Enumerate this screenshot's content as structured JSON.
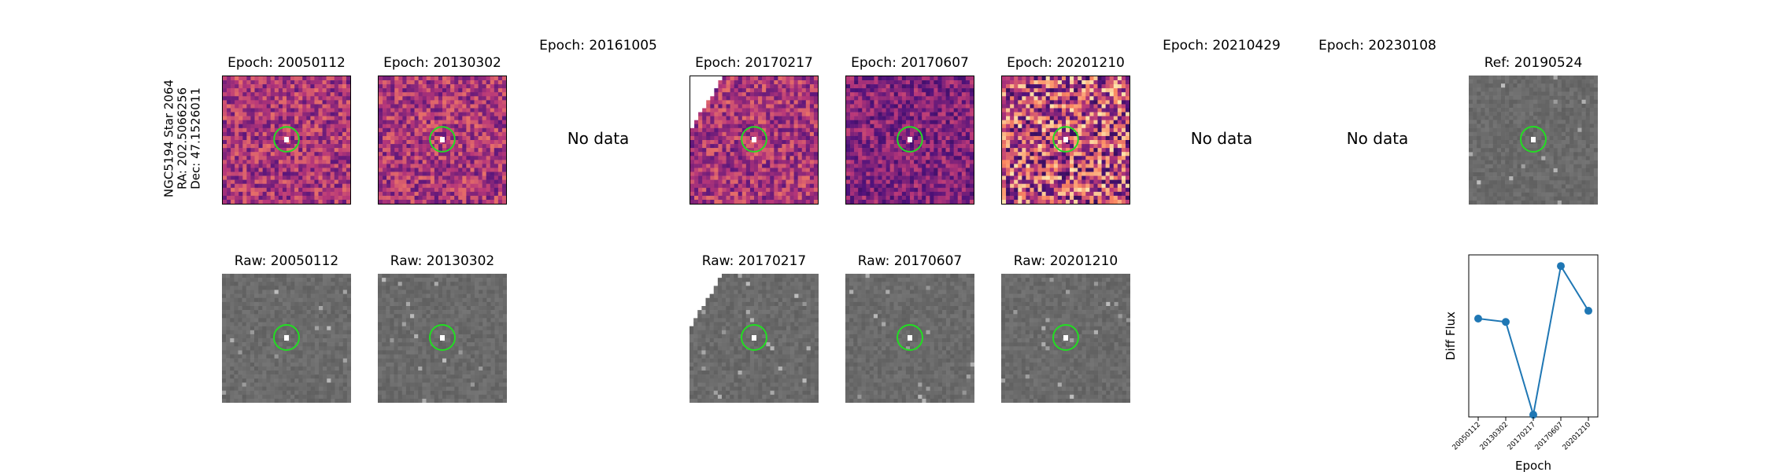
{
  "star": {
    "name": "NGC5194 Star 2064",
    "ra": "RA: 202.5066256",
    "dec": "Dec: 47.1526011"
  },
  "epochs": [
    {
      "title": "Epoch: 20050112",
      "raw_title": "Raw: 20050112",
      "has_data": true,
      "style": "normal"
    },
    {
      "title": "Epoch: 20130302",
      "raw_title": "Raw: 20130302",
      "has_data": true,
      "style": "normal"
    },
    {
      "title": "Epoch: 20161005",
      "raw_title": "",
      "has_data": false,
      "no_data_label": "No data"
    },
    {
      "title": "Epoch: 20170217",
      "raw_title": "Raw: 20170217",
      "has_data": true,
      "style": "partial"
    },
    {
      "title": "Epoch: 20170607",
      "raw_title": "Raw: 20170607",
      "has_data": true,
      "style": "dark"
    },
    {
      "title": "Epoch: 20201210",
      "raw_title": "Raw: 20201210",
      "has_data": true,
      "style": "noisy"
    },
    {
      "title": "Epoch: 20210429",
      "raw_title": "",
      "has_data": false,
      "no_data_label": "No data"
    },
    {
      "title": "Epoch: 20230108",
      "raw_title": "",
      "has_data": false,
      "no_data_label": "No data"
    }
  ],
  "reference": {
    "title": "Ref: 20190524"
  },
  "colors": {
    "circle": "#22dd22",
    "series": "#1f77b4",
    "raw_base": "#6e6e6e"
  },
  "chart_data": {
    "type": "line",
    "title": "",
    "xlabel": "Epoch",
    "ylabel": "Diff Flux",
    "x": [
      "20050112",
      "20130302",
      "20170217",
      "20170607",
      "20201210"
    ],
    "y": [
      0.48,
      0.45,
      -0.38,
      0.95,
      0.55
    ],
    "ylim": [
      -0.4,
      1.05
    ],
    "grid": false,
    "legend": "none",
    "series": [
      {
        "name": "",
        "color": "#1f77b4"
      }
    ]
  }
}
